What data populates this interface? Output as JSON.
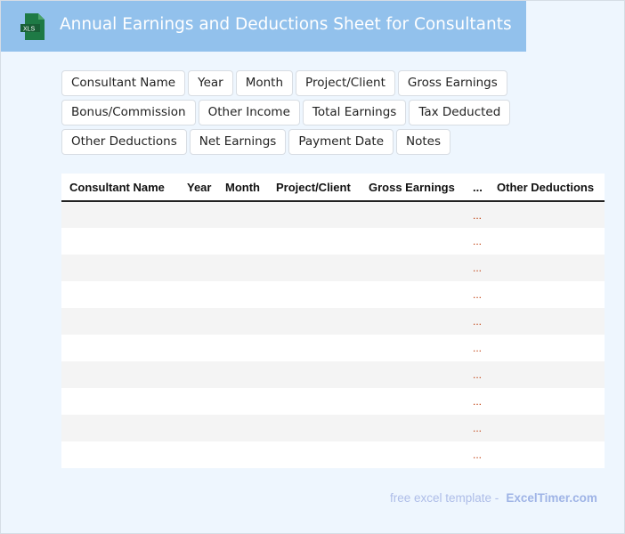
{
  "header": {
    "title": "Annual Earnings and Deductions Sheet for Consultants",
    "icon_text": "XLS"
  },
  "tags": [
    "Consultant Name",
    "Year",
    "Month",
    "Project/Client",
    "Gross Earnings",
    "Bonus/Commission",
    "Other Income",
    "Total Earnings",
    "Tax Deducted",
    "Other Deductions",
    "Net Earnings",
    "Payment Date",
    "Notes"
  ],
  "table": {
    "columns": [
      "Consultant Name",
      "Year",
      "Month",
      "Project/Client",
      "Gross Earnings",
      "...",
      "Other Deductions"
    ],
    "ellipsis": "..."
  },
  "footer": {
    "text": "free excel template -",
    "brand": "ExcelTimer.com"
  }
}
